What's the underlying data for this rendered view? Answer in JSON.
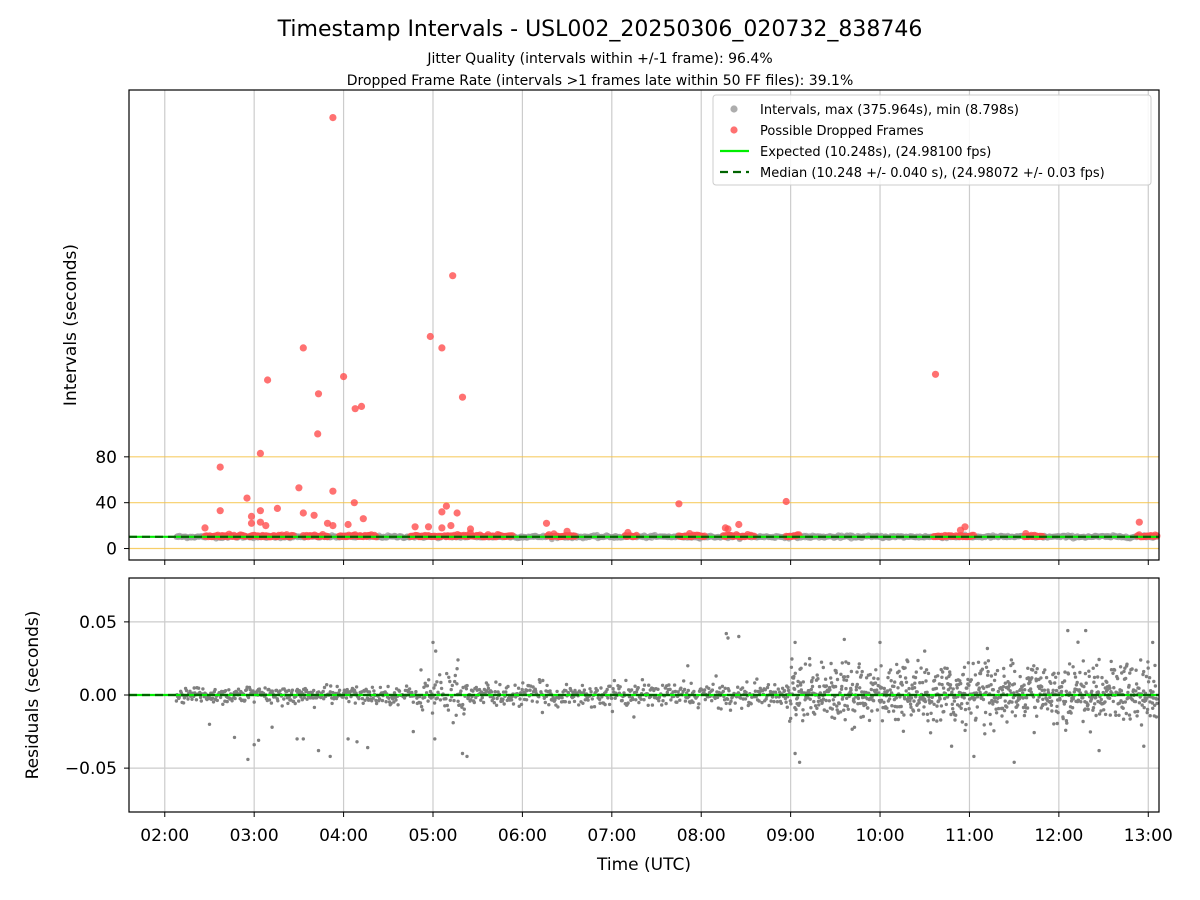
{
  "chart_data": {
    "type": "scatter",
    "title": "Timestamp Intervals - USL002_20250306_020732_838746",
    "subtitle_line1": "Jitter Quality (intervals within +/-1 frame): 96.4%",
    "subtitle_line2": "Dropped Frame Rate (intervals >1 frames late within 50 FF files): 39.1%",
    "xlabel": "Time (UTC)",
    "x_ticks": [
      "02:00",
      "03:00",
      "04:00",
      "05:00",
      "06:00",
      "07:00",
      "08:00",
      "09:00",
      "10:00",
      "11:00",
      "12:00",
      "13:00"
    ],
    "xlim_hours": [
      1.6,
      13.12
    ],
    "top": {
      "ylabel": "Intervals (seconds)",
      "y_ticks": [
        "0",
        "40",
        "80"
      ],
      "ylim": [
        -10,
        400
      ],
      "reference_lines": [
        0,
        40,
        80
      ],
      "reference_color": "#f5c242",
      "expected_value": 10.248,
      "median_value": 10.248,
      "series_intervals_x_range": [
        2.13,
        13.1
      ],
      "dropped_frames": [
        [
          3.88,
          375.964
        ],
        [
          5.22,
          238
        ],
        [
          4.97,
          185
        ],
        [
          5.1,
          175
        ],
        [
          3.55,
          175
        ],
        [
          4.0,
          150
        ],
        [
          3.15,
          147
        ],
        [
          3.72,
          135
        ],
        [
          5.33,
          132
        ],
        [
          4.2,
          124
        ],
        [
          4.13,
          122
        ],
        [
          3.71,
          100
        ],
        [
          10.62,
          152
        ],
        [
          3.07,
          83
        ],
        [
          2.62,
          71
        ],
        [
          3.5,
          53
        ],
        [
          3.88,
          50
        ],
        [
          2.92,
          44
        ],
        [
          4.12,
          40
        ],
        [
          7.75,
          39
        ],
        [
          8.95,
          41
        ],
        [
          5.15,
          37
        ],
        [
          3.26,
          35
        ],
        [
          5.1,
          32
        ],
        [
          5.27,
          31
        ],
        [
          2.62,
          33
        ],
        [
          3.07,
          33
        ],
        [
          3.55,
          31
        ],
        [
          3.67,
          29
        ],
        [
          2.97,
          28
        ],
        [
          3.07,
          23
        ],
        [
          4.22,
          26
        ],
        [
          3.13,
          20
        ],
        [
          2.97,
          22
        ],
        [
          4.05,
          21
        ],
        [
          4.8,
          19
        ],
        [
          4.95,
          19
        ],
        [
          5.1,
          18
        ],
        [
          5.2,
          20
        ],
        [
          3.82,
          22
        ],
        [
          3.88,
          20
        ],
        [
          2.45,
          18
        ],
        [
          5.42,
          17
        ],
        [
          6.27,
          22
        ],
        [
          8.42,
          21
        ],
        [
          12.9,
          23
        ],
        [
          10.95,
          19
        ],
        [
          10.9,
          16
        ],
        [
          8.27,
          18
        ],
        [
          8.3,
          17
        ],
        [
          7.87,
          13
        ],
        [
          7.18,
          14
        ],
        [
          11.63,
          13
        ],
        [
          6.5,
          15
        ]
      ],
      "dropped_cluster_ranges": [
        [
          2.45,
          2.9
        ],
        [
          2.95,
          3.45
        ],
        [
          3.55,
          3.82
        ],
        [
          3.95,
          4.38
        ],
        [
          4.75,
          5.1
        ],
        [
          5.13,
          5.9
        ],
        [
          6.28,
          6.6
        ],
        [
          7.15,
          7.28
        ],
        [
          7.75,
          8.05
        ],
        [
          8.25,
          8.6
        ],
        [
          8.95,
          9.1
        ],
        [
          10.6,
          10.82
        ],
        [
          10.85,
          11.05
        ],
        [
          11.62,
          11.82
        ],
        [
          12.88,
          13.1
        ]
      ]
    },
    "bottom": {
      "ylabel": "Residuals (seconds)",
      "y_ticks": [
        "0.05",
        "0.00",
        "−0.05"
      ],
      "ylim": [
        -0.08,
        0.08
      ],
      "x_range": [
        2.13,
        13.1
      ],
      "noise_segments": [
        [
          2.13,
          4.85,
          0.003
        ],
        [
          4.85,
          5.35,
          0.008
        ],
        [
          5.35,
          8.95,
          0.004
        ],
        [
          8.95,
          13.1,
          0.013
        ]
      ],
      "outliers": [
        [
          2.5,
          -0.02
        ],
        [
          2.78,
          -0.029
        ],
        [
          2.93,
          -0.044
        ],
        [
          3.0,
          -0.034
        ],
        [
          3.05,
          -0.031
        ],
        [
          3.2,
          -0.022
        ],
        [
          3.48,
          -0.03
        ],
        [
          3.55,
          -0.03
        ],
        [
          3.72,
          -0.038
        ],
        [
          3.85,
          -0.042
        ],
        [
          4.05,
          -0.03
        ],
        [
          4.15,
          -0.032
        ],
        [
          4.27,
          -0.036
        ],
        [
          4.78,
          -0.025
        ],
        [
          5.0,
          0.036
        ],
        [
          5.03,
          0.03
        ],
        [
          5.02,
          -0.03
        ],
        [
          5.28,
          0.024
        ],
        [
          5.33,
          -0.04
        ],
        [
          5.38,
          -0.042
        ],
        [
          5.27,
          0.018
        ],
        [
          7.85,
          0.02
        ],
        [
          8.28,
          0.042
        ],
        [
          8.3,
          0.039
        ],
        [
          8.42,
          0.04
        ],
        [
          9.05,
          0.036
        ],
        [
          9.1,
          -0.046
        ],
        [
          9.05,
          -0.04
        ],
        [
          9.6,
          0.038
        ],
        [
          10.0,
          0.036
        ],
        [
          11.05,
          -0.042
        ],
        [
          11.5,
          -0.046
        ],
        [
          12.1,
          0.044
        ],
        [
          12.3,
          0.044
        ],
        [
          12.45,
          -0.038
        ],
        [
          13.05,
          0.036
        ],
        [
          12.95,
          -0.035
        ],
        [
          10.5,
          0.03
        ],
        [
          10.8,
          -0.035
        ]
      ]
    },
    "legend": {
      "placement": "top-right",
      "entries": [
        {
          "label": "Intervals, max (375.964s), min (8.798s)",
          "color": "#999999",
          "kind": "dot"
        },
        {
          "label": "Possible Dropped Frames",
          "color": "#ff4d4d",
          "kind": "dot"
        },
        {
          "label": "Expected (10.248s), (24.98100 fps)",
          "color": "#00ee00",
          "kind": "line"
        },
        {
          "label": "Median (10.248 +/- 0.040 s), (24.98072 +/- 0.03 fps)",
          "color": "#006400",
          "kind": "dashed"
        }
      ]
    },
    "colors": {
      "intervals": "#999999",
      "dropped": "#ff4d4d",
      "expected": "#00ee00",
      "median": "#006400",
      "residuals": "#808080",
      "grid": "#cccccc"
    }
  }
}
